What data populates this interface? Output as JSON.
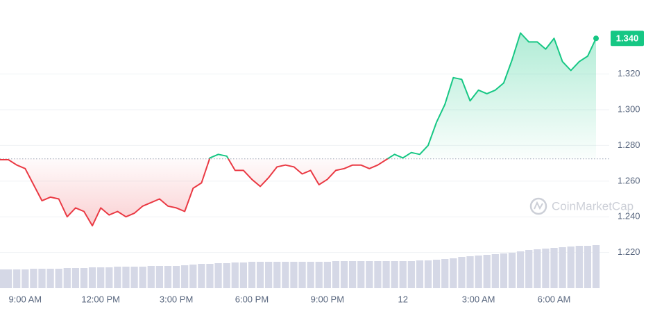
{
  "chart_data": {
    "type": "line",
    "categories": [
      null,
      null,
      null,
      "9:00 AM",
      null,
      null,
      null,
      null,
      null,
      null,
      null,
      null,
      "12:00 PM",
      null,
      null,
      null,
      null,
      null,
      null,
      null,
      null,
      "3:00 PM",
      null,
      null,
      null,
      null,
      null,
      null,
      null,
      null,
      "6:00 PM",
      null,
      null,
      null,
      null,
      null,
      null,
      null,
      null,
      "9:00 PM",
      null,
      null,
      null,
      null,
      null,
      null,
      null,
      null,
      "12",
      null,
      null,
      null,
      null,
      null,
      null,
      null,
      null,
      "3:00 AM",
      null,
      null,
      null,
      null,
      null,
      null,
      null,
      null,
      "6:00 AM",
      null,
      null,
      null,
      null,
      null
    ],
    "series": [
      {
        "name": "Price",
        "values": [
          1.272,
          1.272,
          1.269,
          1.267,
          1.258,
          1.249,
          1.251,
          1.25,
          1.24,
          1.245,
          1.243,
          1.235,
          1.245,
          1.241,
          1.243,
          1.24,
          1.242,
          1.246,
          1.248,
          1.25,
          1.246,
          1.245,
          1.243,
          1.256,
          1.259,
          1.273,
          1.275,
          1.274,
          1.266,
          1.266,
          1.261,
          1.257,
          1.262,
          1.268,
          1.269,
          1.268,
          1.264,
          1.266,
          1.258,
          1.261,
          1.266,
          1.267,
          1.269,
          1.269,
          1.267,
          1.269,
          1.272,
          1.275,
          1.273,
          1.276,
          1.275,
          1.28,
          1.293,
          1.303,
          1.318,
          1.317,
          1.305,
          1.311,
          1.309,
          1.311,
          1.315,
          1.328,
          1.343,
          1.338,
          1.338,
          1.334,
          1.34,
          1.327,
          1.322,
          1.327,
          1.33,
          1.34
        ]
      },
      {
        "name": "Volume",
        "axis": "volume",
        "color": "#d5d8e6",
        "values": [
          27,
          27,
          27,
          27,
          28,
          28,
          28,
          28,
          29,
          29,
          29,
          30,
          30,
          30,
          31,
          31,
          31,
          31,
          32,
          32,
          32,
          32,
          33,
          34,
          35,
          35,
          36,
          36,
          37,
          37,
          38,
          38,
          38,
          38,
          38,
          38,
          38,
          38,
          38,
          38,
          39,
          39,
          39,
          39,
          39,
          39,
          39,
          39,
          39,
          39,
          40,
          40,
          41,
          42,
          43,
          45,
          46,
          47,
          48,
          49,
          50,
          51,
          53,
          55,
          56,
          57,
          58,
          59,
          60,
          61,
          61,
          62
        ]
      }
    ],
    "up_color": "#16c784",
    "down_color": "#ea3943",
    "baseline": 1.2725,
    "ylim": [
      1.2,
      1.3615
    ],
    "yticks": [
      {
        "value": 1.22,
        "label": "1.220"
      },
      {
        "value": 1.24,
        "label": "1.240"
      },
      {
        "value": 1.26,
        "label": "1.260"
      },
      {
        "value": 1.28,
        "label": "1.280"
      },
      {
        "value": 1.3,
        "label": "1.300"
      },
      {
        "value": 1.32,
        "label": "1.320"
      }
    ],
    "volume_lim": [
      0,
      100
    ],
    "grid": true,
    "current_price": {
      "value": 1.34,
      "label": "1.340"
    },
    "watermark": "CoinMarketCap"
  }
}
